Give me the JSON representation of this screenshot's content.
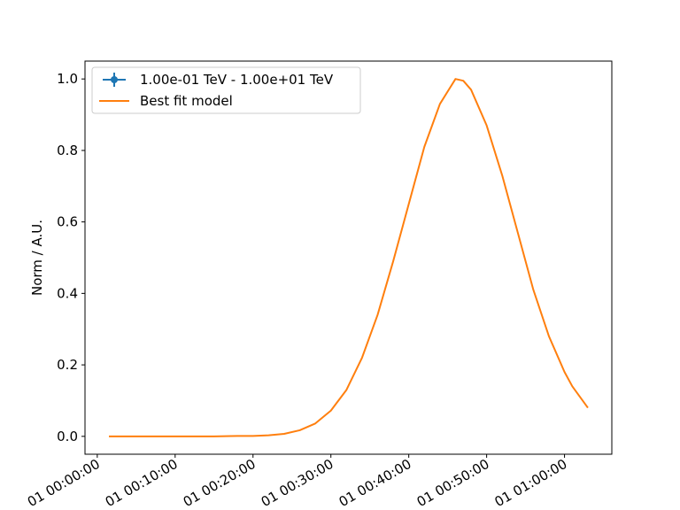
{
  "chart_data": {
    "type": "line",
    "title": "",
    "xlabel": "",
    "ylabel": "Norm / A.U.",
    "x_is_time": true,
    "xlim": [
      "1970-01-01T00:00:00",
      "1970-01-01T01:00:00"
    ],
    "ylim": [
      0.0,
      1.0
    ],
    "xticks": [
      {
        "value": "1970-01-01T00:00:00",
        "label": "01 00:00:00"
      },
      {
        "value": "1970-01-01T00:10:00",
        "label": "01 00:10:00"
      },
      {
        "value": "1970-01-01T00:20:00",
        "label": "01 00:20:00"
      },
      {
        "value": "1970-01-01T00:30:00",
        "label": "01 00:30:00"
      },
      {
        "value": "1970-01-01T00:40:00",
        "label": "01 00:40:00"
      },
      {
        "value": "1970-01-01T00:50:00",
        "label": "01 00:50:00"
      },
      {
        "value": "1970-01-01T01:00:00",
        "label": "01 01:00:00"
      }
    ],
    "yticks": [
      {
        "value": 0.0,
        "label": "0.0"
      },
      {
        "value": 0.2,
        "label": "0.2"
      },
      {
        "value": 0.4,
        "label": "0.4"
      },
      {
        "value": 0.6,
        "label": "0.6"
      },
      {
        "value": 0.8,
        "label": "0.8"
      },
      {
        "value": 1.0,
        "label": "1.0"
      }
    ],
    "grid": false,
    "legend_position": "upper left",
    "series": [
      {
        "name": "1.00e-01 TeV - 1.00e+01 TeV",
        "kind": "errorbar",
        "color": "#1f77b4",
        "points": []
      },
      {
        "name": "Best fit model",
        "kind": "line",
        "color": "#ff7f0e",
        "points": [
          {
            "x": "1970-01-01T00:01:30",
            "y": 0.0
          },
          {
            "x": "1970-01-01T00:05:00",
            "y": 0.0
          },
          {
            "x": "1970-01-01T00:10:00",
            "y": 0.0
          },
          {
            "x": "1970-01-01T00:15:00",
            "y": 0.0
          },
          {
            "x": "1970-01-01T00:18:00",
            "y": 0.001
          },
          {
            "x": "1970-01-01T00:20:00",
            "y": 0.001
          },
          {
            "x": "1970-01-01T00:22:00",
            "y": 0.003
          },
          {
            "x": "1970-01-01T00:24:00",
            "y": 0.007
          },
          {
            "x": "1970-01-01T00:26:00",
            "y": 0.017
          },
          {
            "x": "1970-01-01T00:28:00",
            "y": 0.036
          },
          {
            "x": "1970-01-01T00:30:00",
            "y": 0.072
          },
          {
            "x": "1970-01-01T00:32:00",
            "y": 0.13
          },
          {
            "x": "1970-01-01T00:34:00",
            "y": 0.22
          },
          {
            "x": "1970-01-01T00:36:00",
            "y": 0.34
          },
          {
            "x": "1970-01-01T00:38:00",
            "y": 0.49
          },
          {
            "x": "1970-01-01T00:40:00",
            "y": 0.65
          },
          {
            "x": "1970-01-01T00:42:00",
            "y": 0.81
          },
          {
            "x": "1970-01-01T00:44:00",
            "y": 0.93
          },
          {
            "x": "1970-01-01T00:46:00",
            "y": 1.0
          },
          {
            "x": "1970-01-01T00:47:00",
            "y": 0.995
          },
          {
            "x": "1970-01-01T00:48:00",
            "y": 0.97
          },
          {
            "x": "1970-01-01T00:50:00",
            "y": 0.87
          },
          {
            "x": "1970-01-01T00:52:00",
            "y": 0.73
          },
          {
            "x": "1970-01-01T00:54:00",
            "y": 0.57
          },
          {
            "x": "1970-01-01T00:56:00",
            "y": 0.41
          },
          {
            "x": "1970-01-01T00:58:00",
            "y": 0.28
          },
          {
            "x": "1970-01-01T01:00:00",
            "y": 0.18
          },
          {
            "x": "1970-01-01T01:01:00",
            "y": 0.14
          },
          {
            "x": "1970-01-01T01:02:00",
            "y": 0.11
          },
          {
            "x": "1970-01-01T01:03:00",
            "y": 0.08
          }
        ]
      }
    ]
  }
}
